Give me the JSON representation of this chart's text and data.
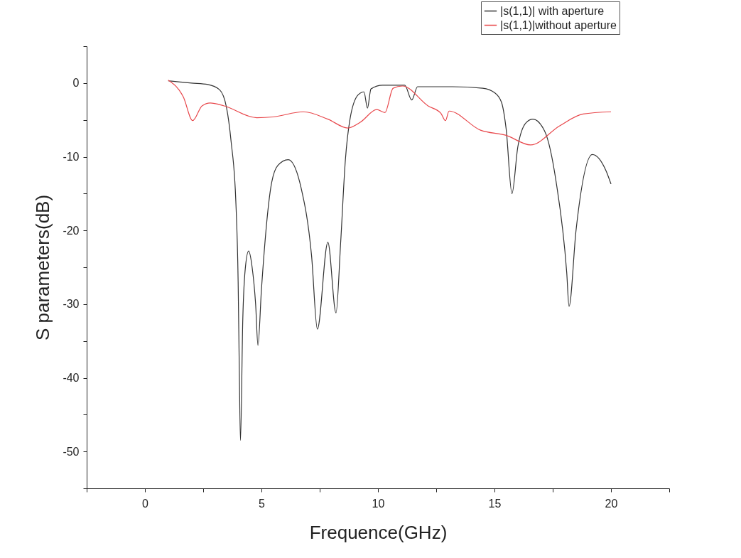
{
  "chart_data": {
    "type": "line",
    "xlabel": "Frequence(GHz)",
    "ylabel": "S parameters(dB)",
    "xlim": [
      -2.5,
      22.5
    ],
    "ylim": [
      -55,
      5
    ],
    "xticks": [
      {
        "value": -2.5,
        "label": null
      },
      0,
      {
        "value": 2.5,
        "label": null
      },
      5,
      {
        "value": 7.5,
        "label": null
      },
      10,
      {
        "value": 12.5,
        "label": null
      },
      15,
      {
        "value": 17.5,
        "label": null
      },
      20,
      {
        "value": 22.5,
        "label": null
      }
    ],
    "yticks": [
      {
        "value": -55,
        "label": null
      },
      -50,
      {
        "value": -45,
        "label": null
      },
      -40,
      {
        "value": -35,
        "label": null
      },
      -30,
      {
        "value": -25,
        "label": null
      },
      -20,
      {
        "value": -15,
        "label": null
      },
      -10,
      {
        "value": -5,
        "label": null
      },
      0,
      {
        "value": 5,
        "label": null
      }
    ],
    "grid": false,
    "legend": "top right",
    "line_style": "solid",
    "marker": "none",
    "series": [
      {
        "name": "|s(1,1)| with aperture",
        "color": "#333333",
        "x": [
          1.0,
          2.0,
          2.7,
          3.2,
          3.5,
          3.7,
          3.9,
          4.0,
          4.05,
          4.1,
          4.2,
          4.3,
          4.45,
          4.6,
          4.75,
          4.85,
          5.0,
          5.4,
          5.7,
          6.15,
          6.7,
          7.15,
          7.4,
          7.85,
          8.2,
          8.4,
          8.6,
          8.8,
          9.15,
          9.4,
          9.55,
          9.7,
          10.2,
          11.15,
          11.45,
          11.7,
          13.2,
          14.5,
          15.0,
          15.3,
          15.5,
          15.75,
          16.0,
          16.35,
          16.65,
          17.15,
          17.65,
          18.1,
          18.2,
          18.5,
          19.2,
          19.8,
          20.0
        ],
        "values": [
          0.3,
          0,
          -0.2,
          -0.9,
          -3.3,
          -8,
          -16,
          -27,
          -39,
          -48.5,
          -32,
          -25.4,
          -22.8,
          -25,
          -30,
          -35.6,
          -28,
          -14.2,
          -11.2,
          -10.4,
          -14.2,
          -23.4,
          -33.4,
          -21.6,
          -31.2,
          -21.6,
          -10.5,
          -4.9,
          -1.6,
          -1.2,
          -3.4,
          -0.8,
          -0.3,
          -0.3,
          -2.3,
          -0.5,
          -0.5,
          -0.7,
          -1.3,
          -2.6,
          -6.2,
          -15,
          -8.7,
          -5.4,
          -4.9,
          -6.5,
          -13.5,
          -25.7,
          -30.3,
          -20,
          -9.7,
          -12,
          -13.7
        ]
      },
      {
        "name": "|s(1,1)|without aperture",
        "color": "#e8474b",
        "x": [
          1.0,
          1.65,
          2.05,
          2.45,
          2.8,
          3.4,
          4.8,
          5.5,
          6.8,
          7.85,
          8.7,
          9.25,
          9.95,
          10.3,
          10.65,
          11.05,
          12.15,
          12.7,
          12.9,
          13.05,
          14.4,
          15.5,
          16.55,
          17.8,
          18.8,
          20.0
        ],
        "values": [
          0.4,
          -1.9,
          -5.1,
          -3.1,
          -2.7,
          -3.1,
          -4.7,
          -4.6,
          -3.9,
          -4.9,
          -6.1,
          -5.3,
          -3.6,
          -4.0,
          -0.7,
          -0.4,
          -3.1,
          -4.1,
          -5.1,
          -3.8,
          -6.4,
          -7.1,
          -8.4,
          -5.8,
          -4.2,
          -3.9
        ]
      }
    ]
  }
}
